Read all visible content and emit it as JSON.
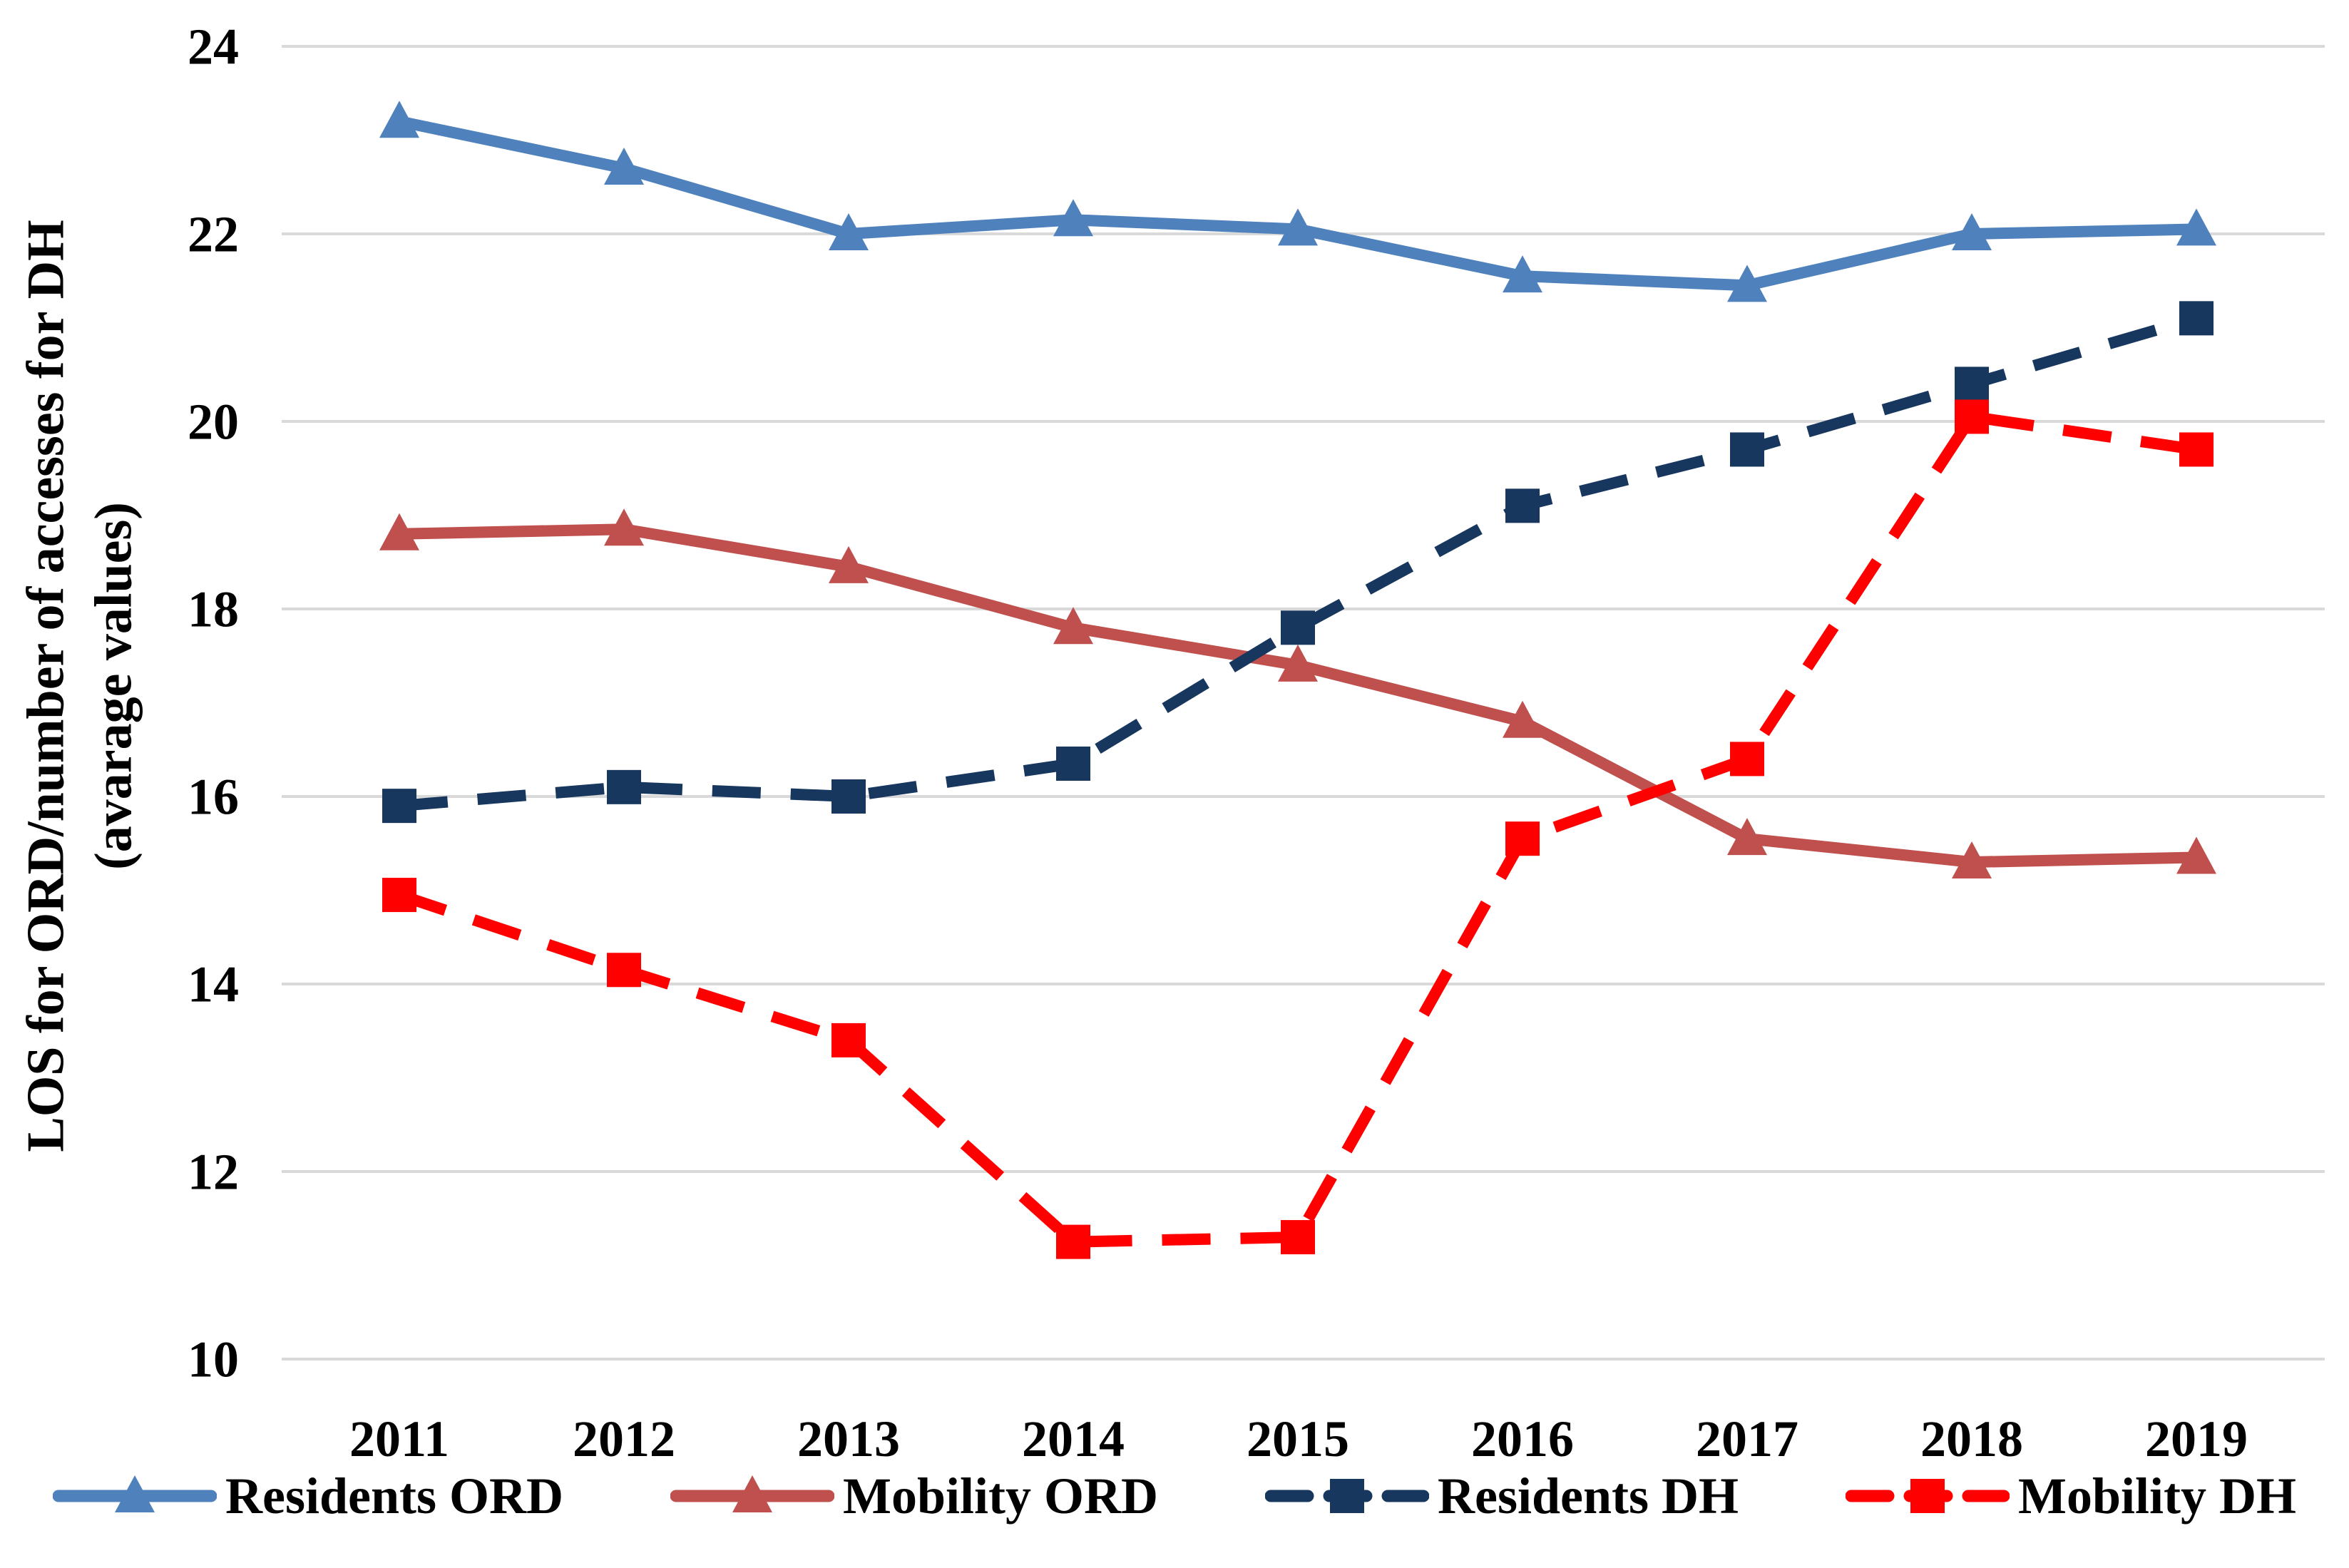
{
  "chart": {
    "y_axis_title_line1": "LOS for ORD/number of accesses for DH",
    "y_axis_title_line2": "(avarage values)"
  },
  "chart_data": {
    "type": "line",
    "x": [
      "2011",
      "2012",
      "2013",
      "2014",
      "2015",
      "2016",
      "2017",
      "2018",
      "2019"
    ],
    "series": [
      {
        "name": "Residents ORD",
        "color": "#4F81BD",
        "marker": "triangle",
        "line_style": "solid",
        "values": [
          23.2,
          22.7,
          22.0,
          22.15,
          22.05,
          21.55,
          21.45,
          22.0,
          22.05
        ]
      },
      {
        "name": "Mobility ORD",
        "color": "#C0504D",
        "marker": "triangle",
        "line_style": "solid",
        "values": [
          18.8,
          18.85,
          18.45,
          17.8,
          17.4,
          16.8,
          15.55,
          15.3,
          15.35
        ]
      },
      {
        "name": "Residents DH",
        "color": "#17375E",
        "marker": "square",
        "line_style": "dashed",
        "values": [
          15.9,
          16.1,
          16.0,
          16.35,
          17.8,
          19.1,
          19.7,
          20.4,
          21.1
        ]
      },
      {
        "name": "Mobility DH",
        "color": "#FF0000",
        "marker": "square",
        "line_style": "dashed",
        "values": [
          14.95,
          14.15,
          13.4,
          11.25,
          11.3,
          15.55,
          16.4,
          20.05,
          19.7
        ]
      }
    ],
    "ylabel": "LOS for ORD/number of accesses for DH (avarage values)",
    "xlabel": "",
    "title": "",
    "ylim": [
      10,
      24
    ],
    "y_ticks": [
      10,
      12,
      14,
      16,
      18,
      20,
      22,
      24
    ],
    "grid": true,
    "grid_color": "#D9D9D9",
    "legend_position": "bottom"
  }
}
